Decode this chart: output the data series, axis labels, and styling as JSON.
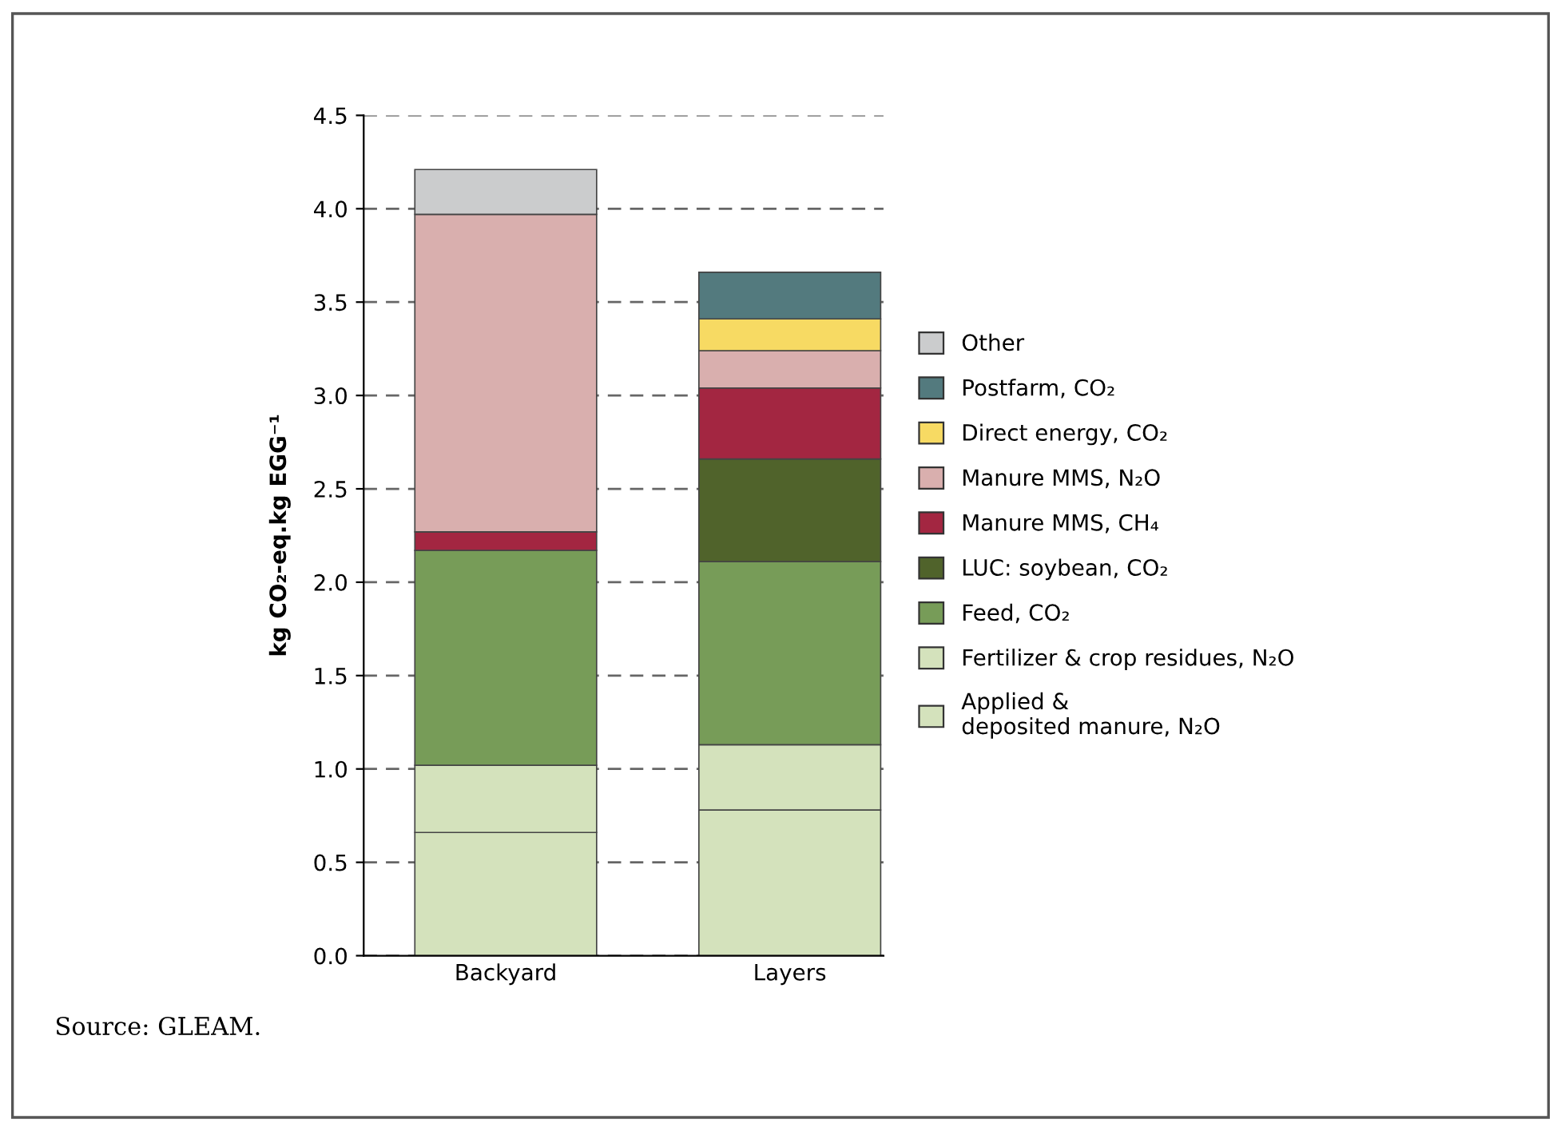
{
  "chart_data": {
    "type": "bar",
    "stacked": true,
    "categories": [
      "Backyard",
      "Layers"
    ],
    "ylabel": "kg CO₂-eq.kg EGG⁻¹",
    "ylim": [
      0,
      4.5
    ],
    "yticks": [
      {
        "value": 0,
        "label": "0.0"
      },
      0.5,
      {
        "value": 1,
        "label": "1.0"
      },
      1.5,
      {
        "value": 2,
        "label": "2.0"
      },
      2.5,
      {
        "value": 3,
        "label": "3.0"
      },
      3.5,
      {
        "value": 4,
        "label": "4.0"
      },
      4.5
    ],
    "grid": "y",
    "legend": "right",
    "line_style": "dashed",
    "series": [
      {
        "name": "Applied &\ndeposited manure, N₂O",
        "color": "#d4e2bc",
        "values": [
          0.66,
          0.78
        ]
      },
      {
        "name": "Fertilizer & crop residues, N₂O",
        "color": "#d4e2bc",
        "values": [
          0.36,
          0.35
        ]
      },
      {
        "name": "Feed, CO₂",
        "color": "#779c58",
        "values": [
          1.15,
          0.98
        ]
      },
      {
        "name": "LUC: soybean, CO₂",
        "color": "#50632b",
        "values": [
          0,
          0.55
        ]
      },
      {
        "name": "Manure MMS, CH₄",
        "color": "#a32641",
        "values": [
          0.1,
          0.38
        ]
      },
      {
        "name": "Manure MMS, N₂O",
        "color": "#d9afae",
        "values": [
          1.7,
          0.2
        ]
      },
      {
        "name": "Direct energy, CO₂",
        "color": "#f7da63",
        "values": [
          0,
          0.17
        ]
      },
      {
        "name": "Postfarm, CO₂",
        "color": "#537a7e",
        "values": [
          0,
          0.25
        ]
      },
      {
        "name": "Other",
        "color": "#cbcccd",
        "values": [
          0.24,
          0
        ]
      }
    ],
    "annotations": [
      "Source: GLEAM."
    ]
  }
}
